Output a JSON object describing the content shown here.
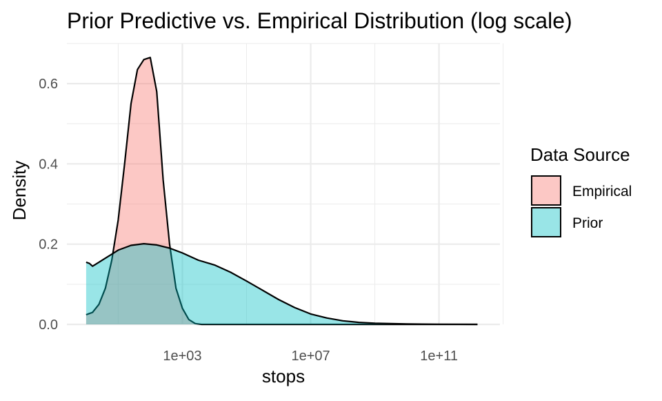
{
  "chart_data": {
    "type": "area",
    "title": "Prior Predictive vs. Empirical Distribution (log scale)",
    "xlabel": "stops",
    "ylabel": "Density",
    "x_scale": "log10",
    "xlim_log10": [
      -0.6,
      12.9
    ],
    "ylim": [
      0,
      0.7
    ],
    "grid": true,
    "x_ticks": [
      {
        "log10": 3,
        "label": "1e+03"
      },
      {
        "log10": 7,
        "label": "1e+07"
      },
      {
        "log10": 11,
        "label": "1e+11"
      }
    ],
    "x_minor_ticks_log10": [
      1,
      5,
      9,
      13
    ],
    "y_ticks": [
      {
        "value": 0.0,
        "label": "0.0"
      },
      {
        "value": 0.2,
        "label": "0.2"
      },
      {
        "value": 0.4,
        "label": "0.4"
      },
      {
        "value": 0.6,
        "label": "0.6"
      }
    ],
    "y_minor_ticks": [
      0.1,
      0.3,
      0.5,
      0.7
    ],
    "legend": {
      "title": "Data Source",
      "position": "right",
      "entries": [
        "Empirical",
        "Prior"
      ]
    },
    "series": [
      {
        "name": "Empirical",
        "color": "#F8766D",
        "x_log10": [
          0.0,
          0.2,
          0.4,
          0.6,
          0.8,
          1.0,
          1.2,
          1.4,
          1.6,
          1.8,
          2.0,
          2.2,
          2.4,
          2.6,
          2.8,
          3.0,
          3.2,
          3.4,
          3.6,
          3.8,
          4.0,
          4.2,
          4.4,
          5.0,
          6.0,
          8.0,
          10.0,
          12.2
        ],
        "values": [
          0.024,
          0.03,
          0.05,
          0.09,
          0.16,
          0.26,
          0.4,
          0.55,
          0.635,
          0.66,
          0.665,
          0.58,
          0.36,
          0.2,
          0.09,
          0.04,
          0.012,
          0.002,
          0.0,
          0.0,
          0.0,
          0.0,
          0.0,
          0.0,
          0.0,
          0.0,
          0.0,
          0.0
        ]
      },
      {
        "name": "Prior",
        "color": "#00BFC4",
        "x_log10": [
          0.0,
          0.1,
          0.2,
          0.3,
          0.4,
          0.6,
          0.8,
          1.0,
          1.4,
          1.8,
          2.2,
          2.6,
          3.0,
          3.5,
          4.0,
          4.5,
          5.0,
          5.5,
          6.0,
          6.5,
          7.0,
          7.5,
          8.0,
          8.5,
          9.0,
          10.0,
          11.0,
          12.2
        ],
        "values": [
          0.155,
          0.152,
          0.145,
          0.15,
          0.155,
          0.165,
          0.175,
          0.185,
          0.197,
          0.201,
          0.198,
          0.19,
          0.178,
          0.16,
          0.148,
          0.13,
          0.108,
          0.085,
          0.062,
          0.042,
          0.026,
          0.016,
          0.009,
          0.005,
          0.003,
          0.001,
          0.0004,
          0.0
        ]
      }
    ]
  }
}
